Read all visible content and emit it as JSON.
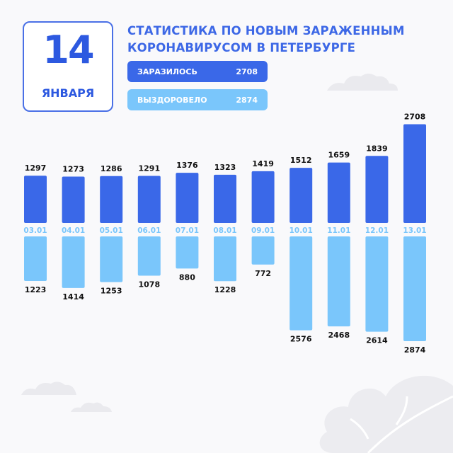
{
  "header": {
    "day": "14",
    "month": "ЯНВАРЯ",
    "title_line1": "СТАТИСТИКА ПО НОВЫМ ЗАРАЖЕННЫМ",
    "title_line2": "КОРОНАВИРУСОМ В ПЕТЕРБУРГЕ"
  },
  "legend": {
    "infected_label": "ЗАРАЗИЛОСЬ",
    "infected_value": "2708",
    "recovered_label": "ВЫЗДОРОВЕЛО",
    "recovered_value": "2874"
  },
  "colors": {
    "infected": "#3a68e8",
    "recovered": "#7ac6fb",
    "date_on_infected": "#7ac6fb",
    "date_on_recovered": "#ffffff",
    "accent": "#2d59e0"
  },
  "chart_data": {
    "type": "bar",
    "categories": [
      "03.01",
      "04.01",
      "05.01",
      "06.01",
      "07.01",
      "08.01",
      "09.01",
      "10.01",
      "11.01",
      "12.01",
      "13.01"
    ],
    "series": [
      {
        "name": "ЗАРАЗИЛОСЬ",
        "values": [
          1297,
          1273,
          1286,
          1291,
          1376,
          1323,
          1419,
          1512,
          1659,
          1839,
          2708
        ]
      },
      {
        "name": "ВЫЗДОРОВЕЛО",
        "values": [
          1223,
          1414,
          1253,
          1078,
          880,
          1228,
          772,
          2576,
          2468,
          2614,
          2874
        ]
      }
    ],
    "layout": "diverging",
    "grid": false
  }
}
